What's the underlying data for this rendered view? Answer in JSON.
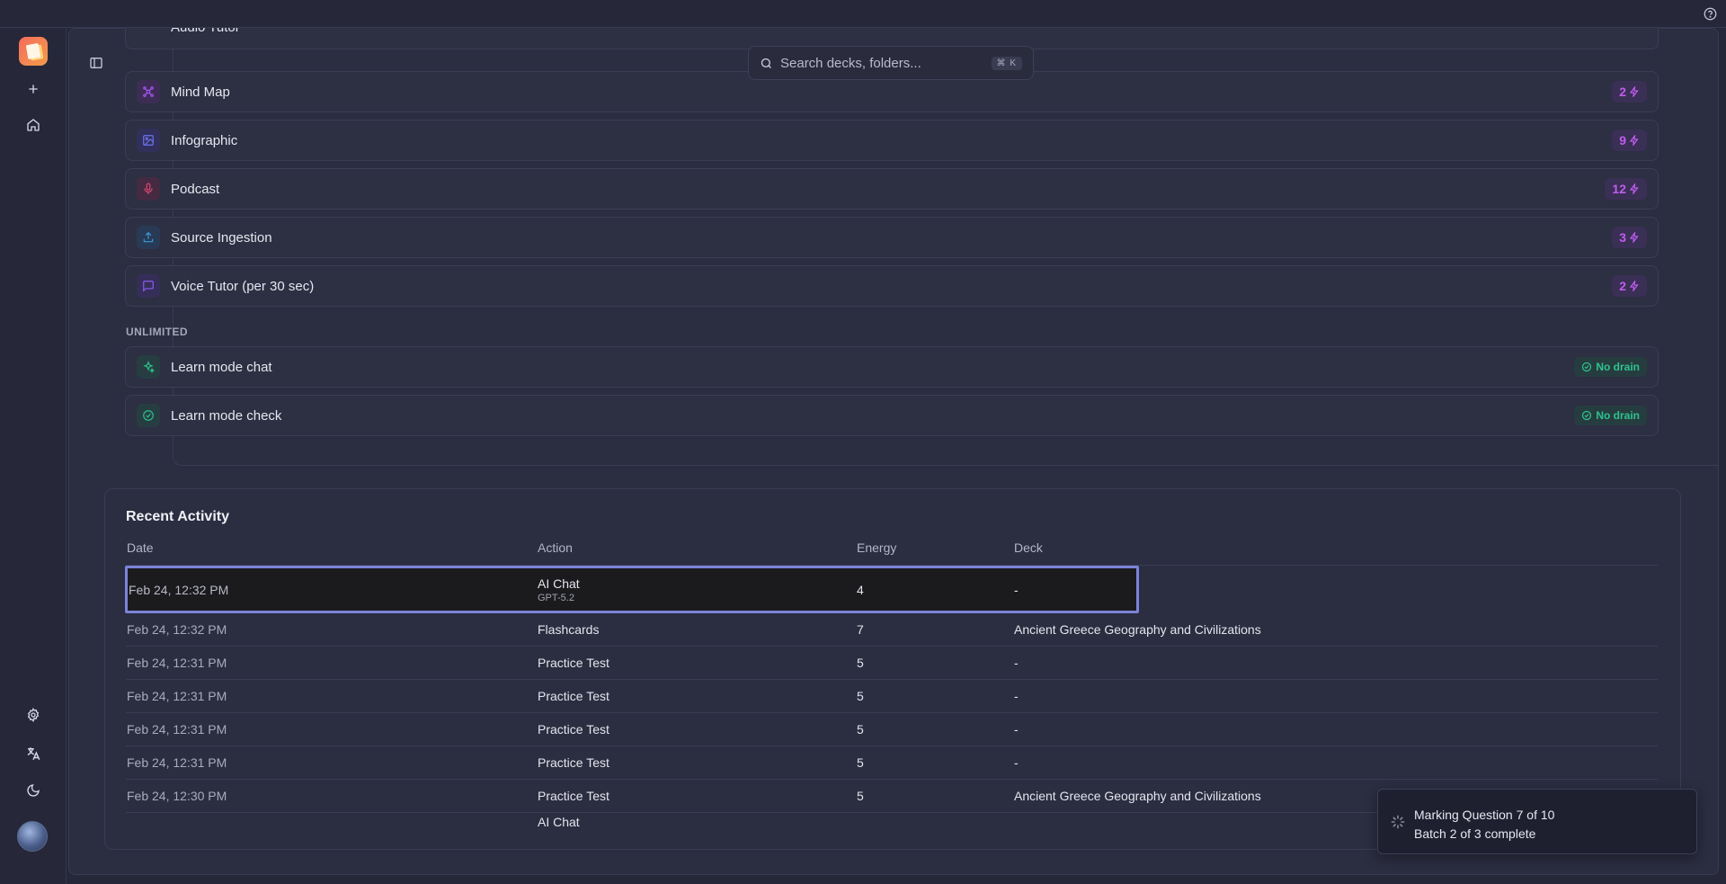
{
  "search": {
    "placeholder": "Search decks, folders...",
    "shortcut": "⌘ K"
  },
  "rail": {
    "items": [
      "new",
      "home",
      "settings",
      "language",
      "theme"
    ]
  },
  "costs": {
    "partial_top_label": "Audio Tutor",
    "rows": [
      {
        "name": "Mind Map",
        "value": "2",
        "icon": "mind-map-icon",
        "color": "#a855f7"
      },
      {
        "name": "Infographic",
        "value": "9",
        "icon": "image-icon",
        "color": "#6366f1"
      },
      {
        "name": "Podcast",
        "value": "12",
        "icon": "microphone-icon",
        "color": "#e54572"
      },
      {
        "name": "Source Ingestion",
        "value": "3",
        "icon": "upload-icon",
        "color": "#3b9ad9"
      },
      {
        "name": "Voice Tutor (per 30 sec)",
        "value": "2",
        "icon": "chat-bubble-icon",
        "color": "#8b5cf6"
      }
    ],
    "unlimited_heading": "UNLIMITED",
    "unlimited_rows": [
      {
        "name": "Learn mode chat",
        "badge": "No drain",
        "icon": "sparkle-icon"
      },
      {
        "name": "Learn mode check",
        "badge": "No drain",
        "icon": "check-circle-icon"
      }
    ]
  },
  "activity": {
    "title": "Recent Activity",
    "columns": {
      "date": "Date",
      "action": "Action",
      "energy": "Energy",
      "deck": "Deck"
    },
    "selected_row": {
      "date": "Feb 24, 12:32 PM",
      "action": "AI Chat",
      "sub": "GPT-5.2",
      "energy": "4",
      "deck": "-"
    },
    "rows": [
      {
        "date": "Feb 24, 12:32 PM",
        "action": "Flashcards",
        "energy": "7",
        "deck": "Ancient Greece Geography and Civilizations"
      },
      {
        "date": "Feb 24, 12:31 PM",
        "action": "Practice Test",
        "energy": "5",
        "deck": "-"
      },
      {
        "date": "Feb 24, 12:31 PM",
        "action": "Practice Test",
        "energy": "5",
        "deck": "-"
      },
      {
        "date": "Feb 24, 12:31 PM",
        "action": "Practice Test",
        "energy": "5",
        "deck": "-"
      },
      {
        "date": "Feb 24, 12:31 PM",
        "action": "Practice Test",
        "energy": "5",
        "deck": "-"
      },
      {
        "date": "Feb 24, 12:30 PM",
        "action": "Practice Test",
        "energy": "5",
        "deck": "Ancient Greece Geography and Civilizations"
      }
    ],
    "partial_row_action": "AI Chat"
  },
  "toast": {
    "line1": "Marking Question 7 of 10",
    "line2": "Batch 2 of 3 complete"
  },
  "colors": {
    "accent": "#c15cf0",
    "success": "#2fc28d",
    "selection": "#7b84d9"
  }
}
